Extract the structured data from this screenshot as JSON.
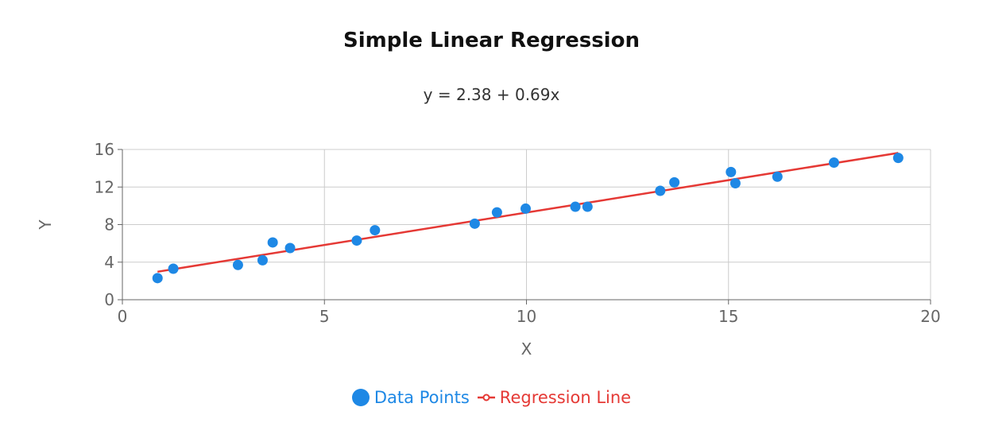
{
  "chart_data": {
    "type": "scatter",
    "title": "Simple Linear Regression",
    "subtitle": "y = 2.38 + 0.69x",
    "xlabel": "X",
    "ylabel": "Y",
    "xlim": [
      0,
      20
    ],
    "ylim": [
      0,
      16
    ],
    "xticks": [
      0,
      5,
      10,
      15,
      20
    ],
    "yticks": [
      0,
      4,
      8,
      12,
      16
    ],
    "grid": true,
    "legend_position": "bottom",
    "series": [
      {
        "name": "Data Points",
        "kind": "scatter",
        "color": "#1e88e5",
        "points": [
          [
            0.87,
            2.3
          ],
          [
            1.26,
            3.3
          ],
          [
            2.86,
            3.7
          ],
          [
            3.47,
            4.2
          ],
          [
            3.72,
            6.1
          ],
          [
            4.15,
            5.5
          ],
          [
            5.8,
            6.3
          ],
          [
            6.25,
            7.4
          ],
          [
            8.72,
            8.1
          ],
          [
            9.27,
            9.3
          ],
          [
            9.98,
            9.7
          ],
          [
            11.21,
            9.9
          ],
          [
            11.51,
            9.9
          ],
          [
            13.31,
            11.6
          ],
          [
            13.66,
            12.5
          ],
          [
            15.06,
            13.6
          ],
          [
            15.17,
            12.4
          ],
          [
            16.21,
            13.1
          ],
          [
            17.61,
            14.6
          ],
          [
            19.2,
            15.1
          ]
        ]
      },
      {
        "name": "Regression Line",
        "kind": "line",
        "color": "#e53935",
        "intercept": 2.38,
        "slope": 0.69,
        "points": [
          [
            0.87,
            2.98
          ],
          [
            19.2,
            15.63
          ]
        ]
      }
    ]
  }
}
